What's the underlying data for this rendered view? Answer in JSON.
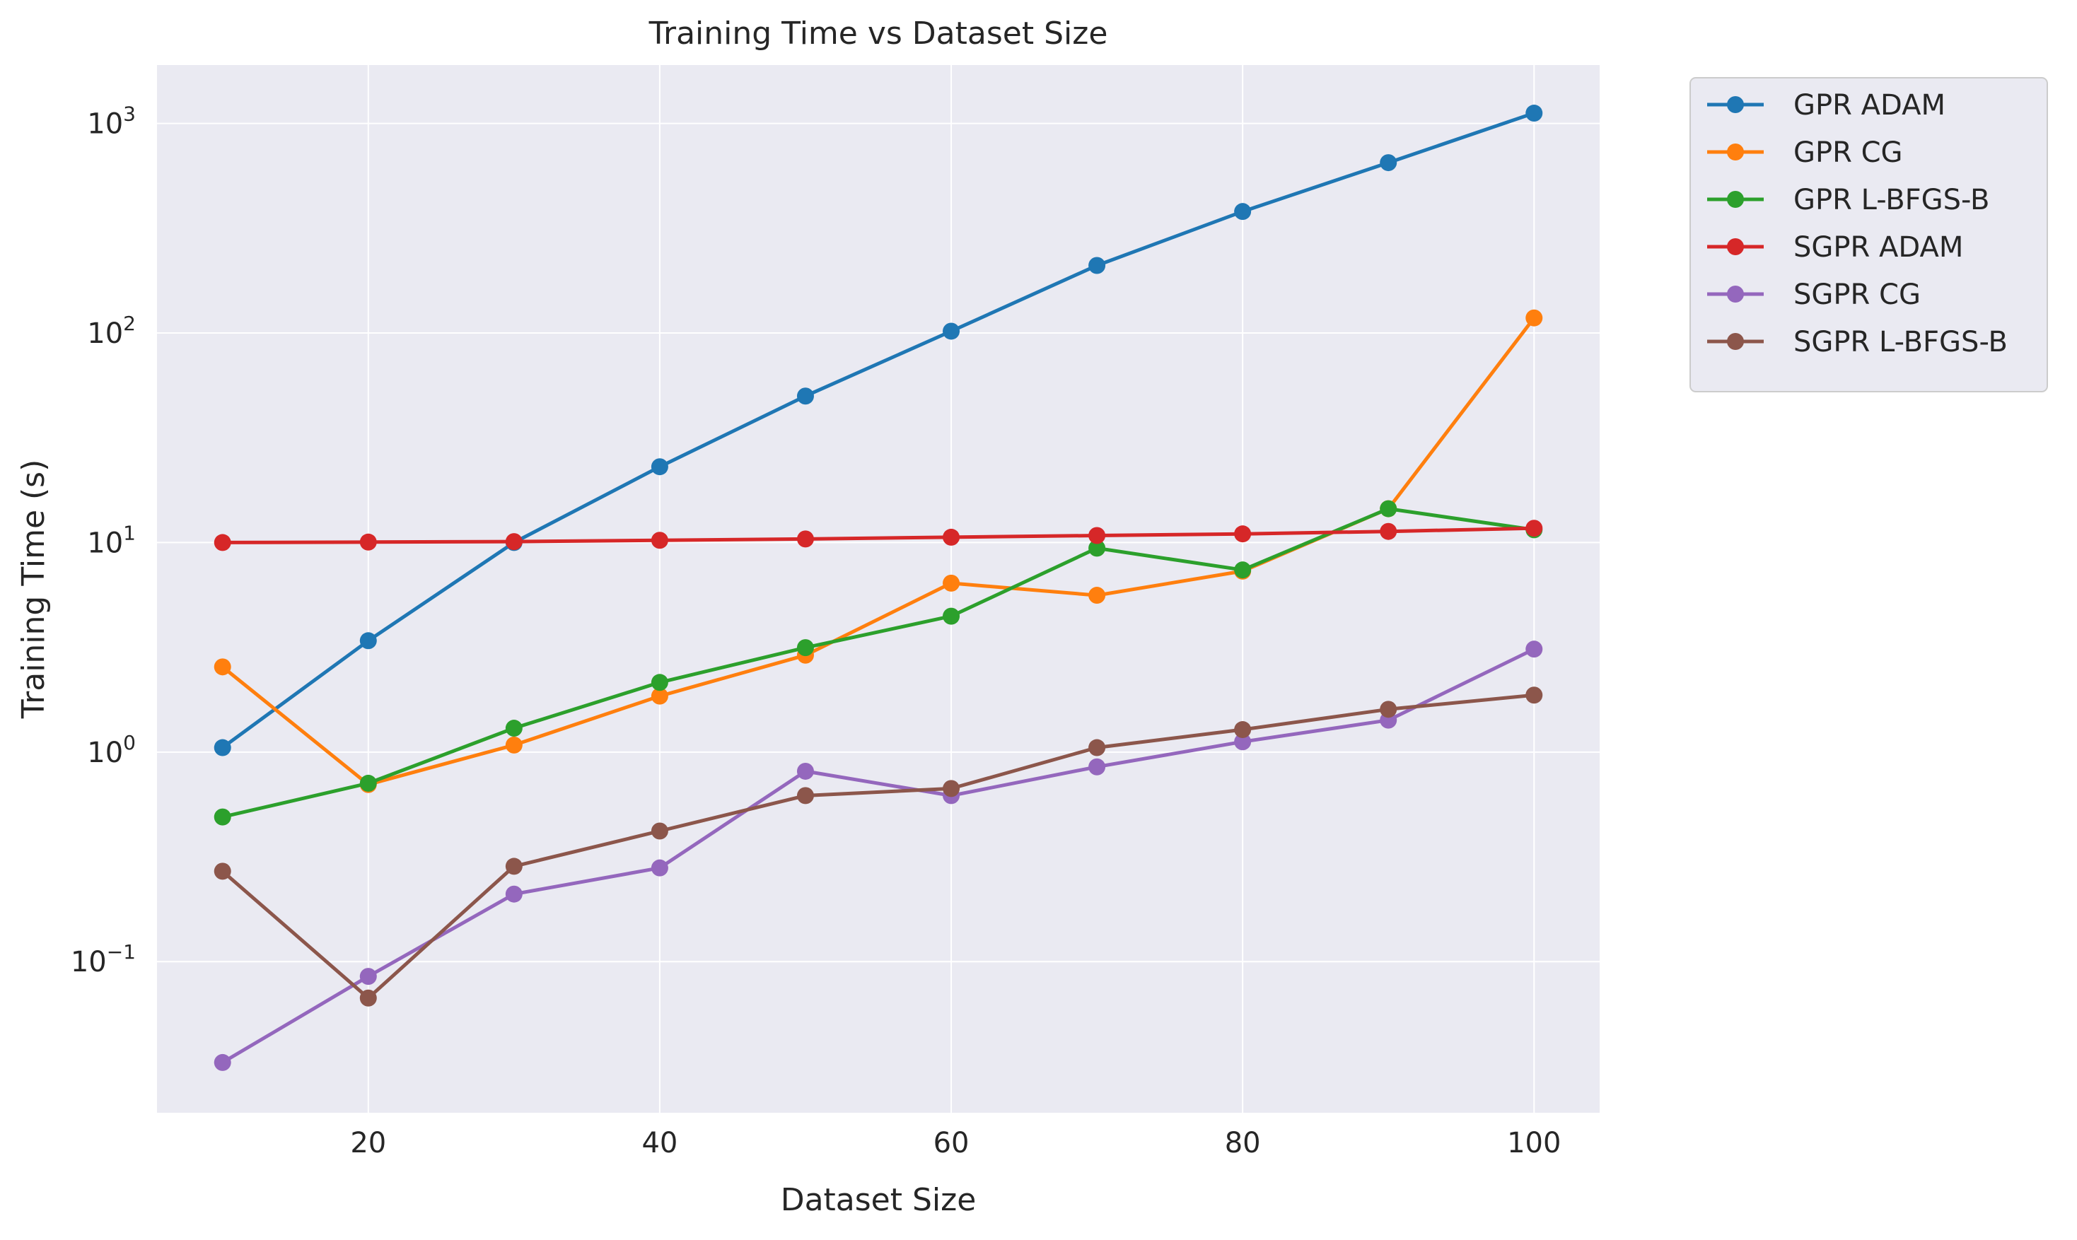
{
  "chart_data": {
    "type": "line",
    "title": "Training Time vs Dataset Size",
    "xlabel": "Dataset Size",
    "ylabel": "Training Time (s)",
    "yscale": "log",
    "xlim": [
      5.5,
      104.5
    ],
    "ylim": [
      0.019,
      1900
    ],
    "xticks": [
      20,
      40,
      60,
      80,
      100
    ],
    "yticks": [
      0.1,
      1,
      10,
      100,
      1000
    ],
    "ytick_labels": [
      {
        "base": "10",
        "exp": "−1"
      },
      {
        "base": "10",
        "exp": "0"
      },
      {
        "base": "10",
        "exp": "1"
      },
      {
        "base": "10",
        "exp": "2"
      },
      {
        "base": "10",
        "exp": "3"
      }
    ],
    "grid": true,
    "legend_position": "outside-top-right",
    "background": "#eaeaf2",
    "x": [
      10,
      20,
      30,
      40,
      50,
      60,
      70,
      80,
      90,
      100
    ],
    "series": [
      {
        "name": "GPR ADAM",
        "color": "#1f77b4",
        "values": [
          1.05,
          3.4,
          10.0,
          23.0,
          50.0,
          102.0,
          210.0,
          380.0,
          650.0,
          1120.0
        ]
      },
      {
        "name": "GPR CG",
        "color": "#ff7f0e",
        "values": [
          2.55,
          0.7,
          1.08,
          1.85,
          2.9,
          6.4,
          5.6,
          7.3,
          14.5,
          118.0
        ]
      },
      {
        "name": "GPR L-BFGS-B",
        "color": "#2ca02c",
        "values": [
          0.49,
          0.71,
          1.3,
          2.15,
          3.15,
          4.45,
          9.4,
          7.4,
          14.5,
          11.5
        ]
      },
      {
        "name": "SGPR ADAM",
        "color": "#d62728",
        "values": [
          10.0,
          10.05,
          10.1,
          10.25,
          10.4,
          10.6,
          10.8,
          11.0,
          11.3,
          11.7
        ]
      },
      {
        "name": "SGPR CG",
        "color": "#9467bd",
        "values": [
          0.033,
          0.085,
          0.21,
          0.28,
          0.81,
          0.62,
          0.85,
          1.12,
          1.42,
          3.1
        ]
      },
      {
        "name": "SGPR L-BFGS-B",
        "color": "#8c564b",
        "values": [
          0.27,
          0.067,
          0.285,
          0.42,
          0.62,
          0.67,
          1.05,
          1.28,
          1.6,
          1.87
        ]
      }
    ]
  }
}
